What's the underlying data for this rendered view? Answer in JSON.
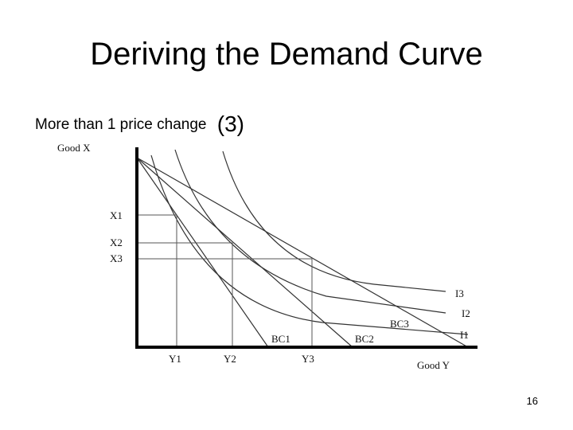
{
  "slide": {
    "title": "Deriving the Demand Curve",
    "subtitle_text": "More than 1 price change",
    "subtitle_number": "(3)",
    "page_number": "16"
  },
  "diagram": {
    "y_axis_label": "Good X",
    "x_axis_label": "Good Y",
    "x_axis_ticks": [
      "Y1",
      "Y2",
      "Y3"
    ],
    "y_axis_ticks": [
      "X1",
      "X2",
      "X3"
    ],
    "budget_constraints": [
      "BC1",
      "BC2",
      "BC3"
    ],
    "indifference_curves": [
      "I1",
      "I2",
      "I3"
    ],
    "colors": {
      "lines": "#333333",
      "axes": "#000000",
      "background": "#ffffff"
    }
  }
}
